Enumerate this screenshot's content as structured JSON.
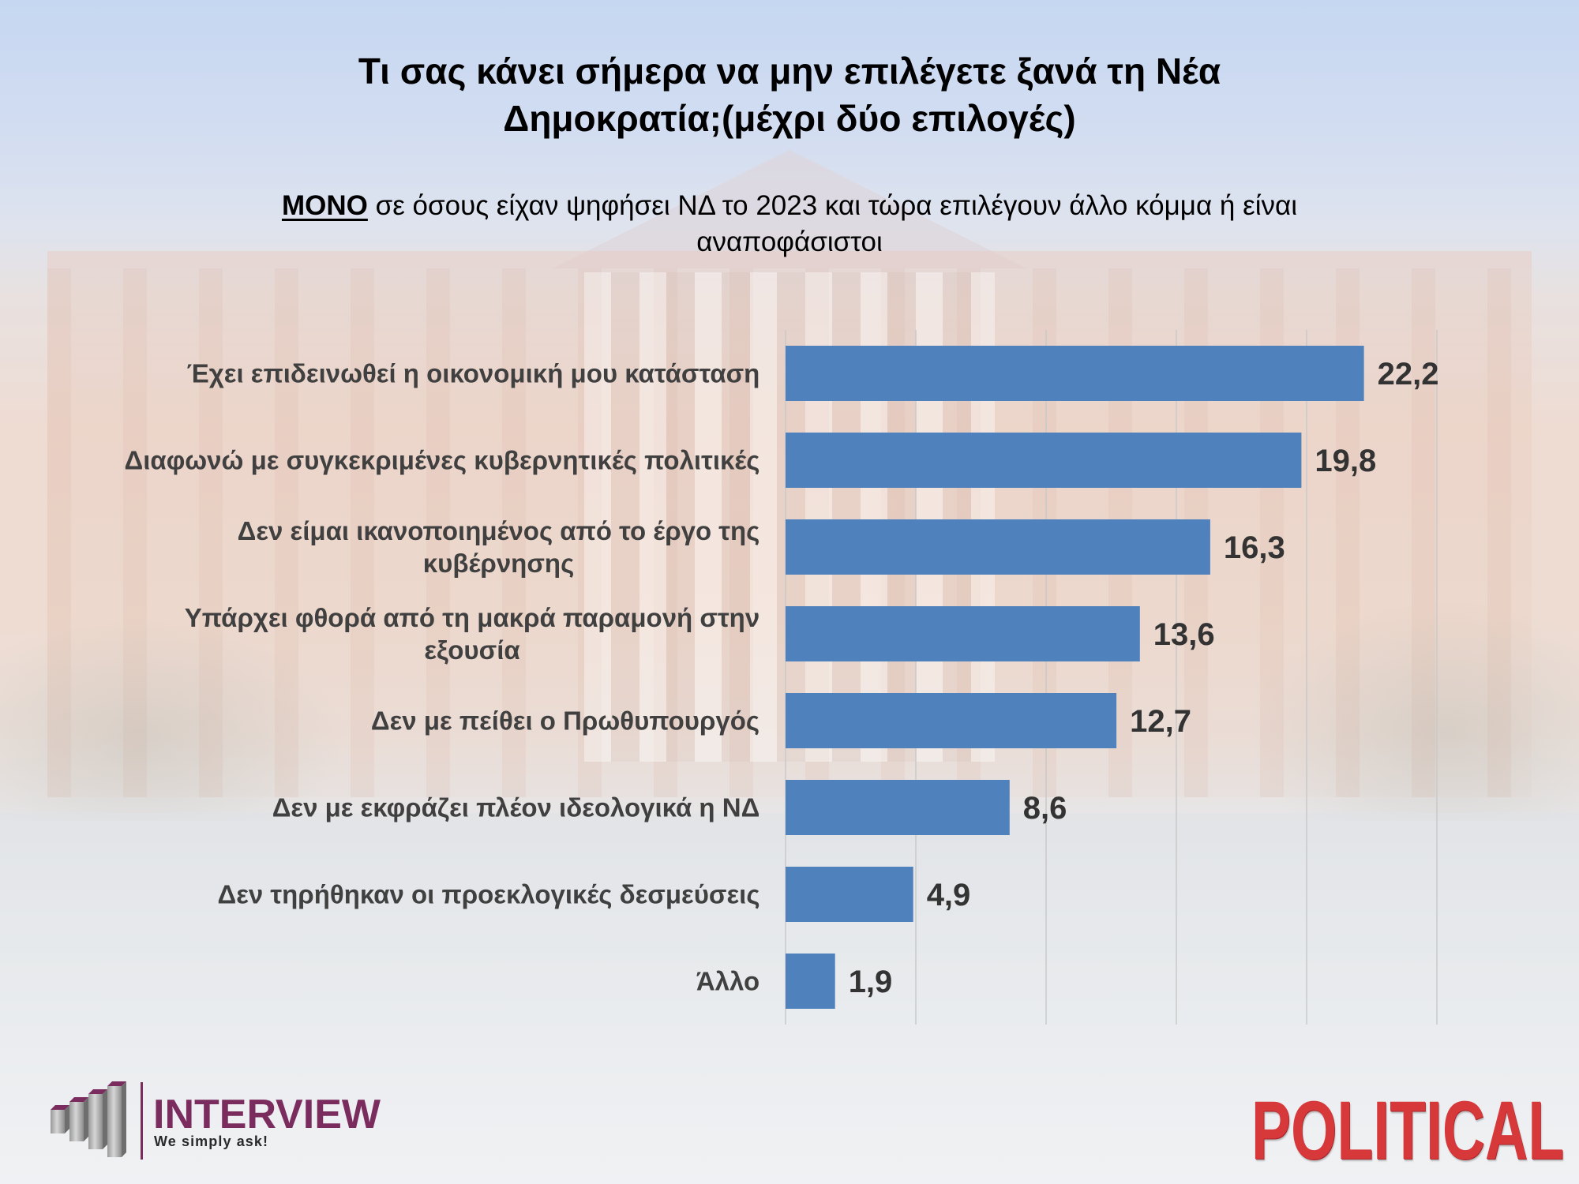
{
  "chart_data": {
    "type": "bar",
    "orientation": "horizontal",
    "title": "Τι σας κάνει σήμερα να μην επιλέγετε ξανά τη Νέα Δημοκρατία;(μέχρι δύο επιλογές)",
    "subtitle_emphasis": "ΜΟΝΟ",
    "subtitle": "σε όσους είχαν ψηφήσει ΝΔ το 2023 και τώρα επιλέγουν άλλο κόμμα ή είναι αναποφάσιστοι",
    "categories": [
      "Έχει επιδεινωθεί η οικονομική μου κατάσταση",
      "Διαφωνώ με συγκεκριμένες κυβερνητικές πολιτικές",
      "Δεν είμαι ικανοποιημένος από το έργο της κυβέρνησης",
      "Υπάρχει φθορά από τη μακρά παραμονή στην εξουσία",
      "Δεν με πείθει ο Πρωθυπουργός",
      "Δεν με εκφράζει πλέον ιδεολογικά η ΝΔ",
      "Δεν τηρήθηκαν οι προεκλογικές δεσμεύσεις",
      "Άλλο"
    ],
    "values": [
      22.2,
      19.8,
      16.3,
      13.6,
      12.7,
      8.6,
      4.9,
      1.9
    ],
    "data_labels": [
      "22,2",
      "19,8",
      "16,3",
      "13,6",
      "12,7",
      "8,6",
      "4,9",
      "1,9"
    ],
    "xlim": [
      0,
      25
    ],
    "major_unit": 5,
    "grid": true,
    "x_tick_labels_shown": false,
    "legend": "none",
    "bar_color": "#4F81BD"
  },
  "branding": {
    "interview": {
      "name": "INTERVIEW",
      "tagline": "We simply ask!",
      "color": "#7B2C5E",
      "icon": "stacked-bars-icon"
    },
    "political": {
      "name": "POLITICAL",
      "color": "#D7393B"
    }
  }
}
